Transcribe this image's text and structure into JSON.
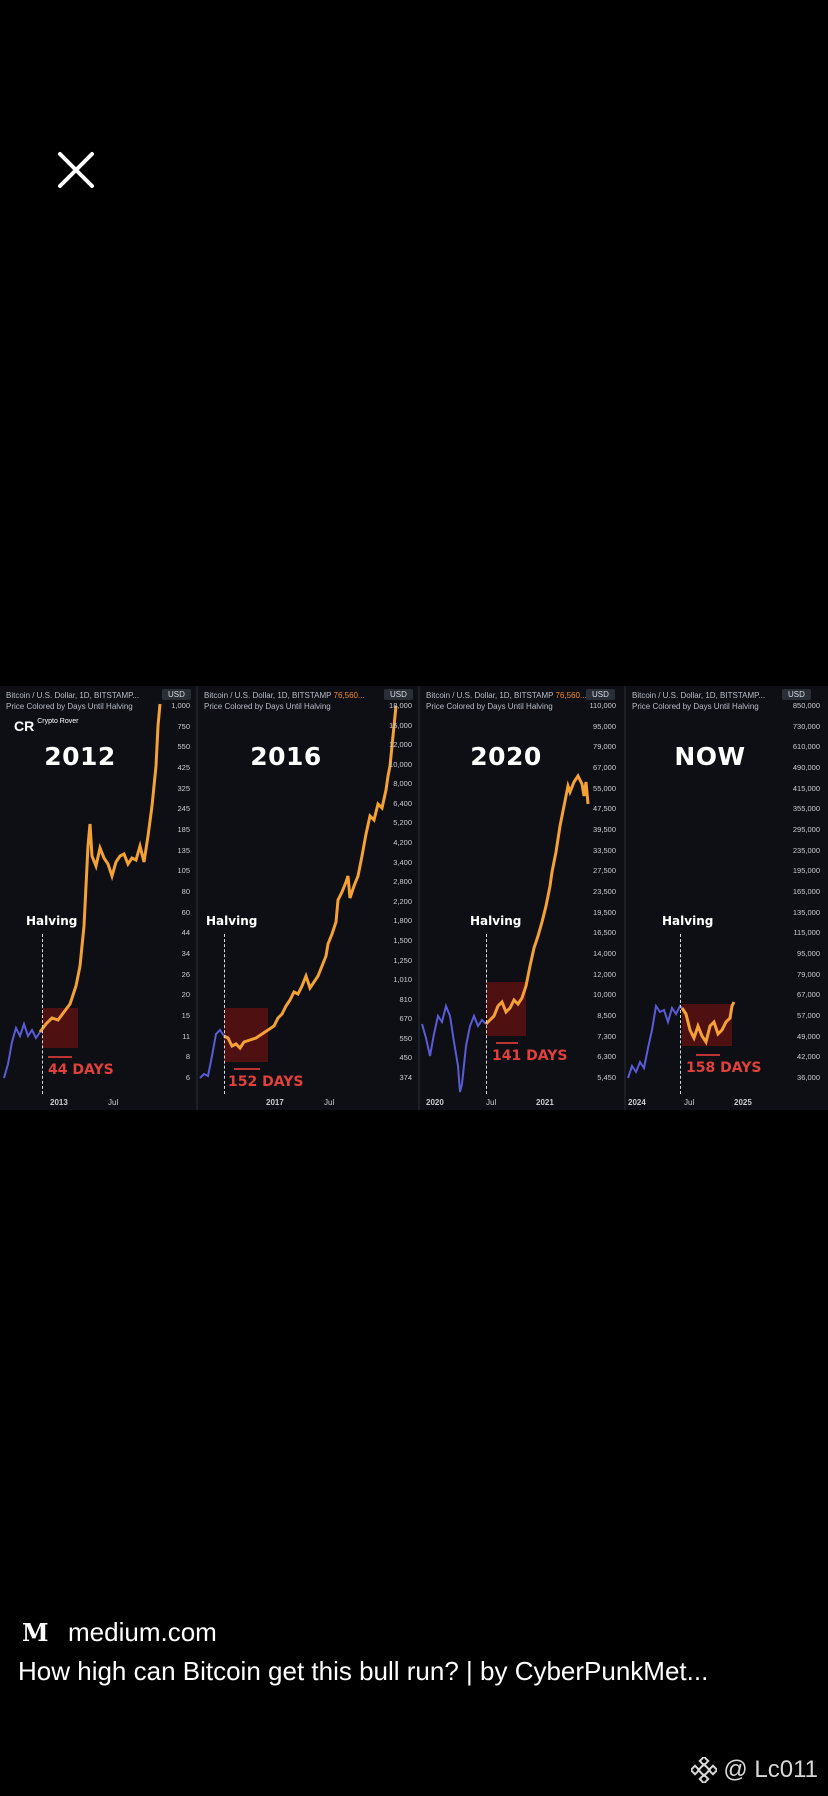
{
  "close": {
    "icon": "close-icon"
  },
  "source": {
    "logo_text": "M",
    "domain": "medium.com"
  },
  "article": {
    "title": "How high can Bitcoin get this bull run? | by CyberPunkMet..."
  },
  "watermark": {
    "text": "@ Lc011",
    "icon": "binance-icon"
  },
  "panels": [
    {
      "header1": "Bitcoin / U.S. Dollar, 1D, BITSTAMP...",
      "header_accent": "",
      "header2": "Price Colored by Days Until Halving",
      "currency": "USD",
      "year": "2012",
      "halving_label": "Halving",
      "days_label": "44 DAYS",
      "logo": "Crypto Rover",
      "ticks": [
        "1,000",
        "750",
        "550",
        "425",
        "325",
        "245",
        "185",
        "135",
        "105",
        "80",
        "60",
        "44",
        "34",
        "26",
        "20",
        "15",
        "11",
        "8",
        "6"
      ],
      "x_labels": [
        "2013",
        "Jul"
      ]
    },
    {
      "header1": "Bitcoin / U.S. Dollar, 1D, BITSTAMP",
      "header_accent": "76,560...",
      "header2": "Price Colored by Days Until Halving",
      "currency": "USD",
      "year": "2016",
      "halving_label": "Halving",
      "days_label": "152 DAYS",
      "ticks": [
        "18,000",
        "15,000",
        "12,000",
        "10,000",
        "8,000",
        "6,400",
        "5,200",
        "4,200",
        "3,400",
        "2,800",
        "2,200",
        "1,800",
        "1,500",
        "1,250",
        "1,010",
        "810",
        "670",
        "550",
        "450",
        "374"
      ],
      "x_labels": [
        "2017",
        "Jul"
      ]
    },
    {
      "header1": "Bitcoin / U.S. Dollar, 1D, BITSTAMP",
      "header_accent": "76,560...",
      "header2": "Price Colored by Days Until Halving",
      "currency": "USD",
      "year": "2020",
      "halving_label": "Halving",
      "days_label": "141 DAYS",
      "ticks": [
        "110,000",
        "95,000",
        "79,000",
        "67,000",
        "55,000",
        "47,500",
        "39,500",
        "33,500",
        "27,500",
        "23,500",
        "19,500",
        "16,500",
        "14,000",
        "12,000",
        "10,000",
        "8,500",
        "7,300",
        "6,300",
        "5,450"
      ],
      "x_labels": [
        "2020",
        "Jul",
        "2021"
      ]
    },
    {
      "header1": "Bitcoin / U.S. Dollar, 1D, BITSTAMP...",
      "header_accent": "",
      "header2": "Price Colored by Days Until Halving",
      "currency": "USD",
      "year": "NOW",
      "halving_label": "Halving",
      "days_label": "158 DAYS",
      "ticks": [
        "850,000",
        "730,000",
        "610,000",
        "490,000",
        "415,000",
        "355,000",
        "295,000",
        "235,000",
        "195,000",
        "165,000",
        "135,000",
        "115,000",
        "95,000",
        "79,000",
        "67,000",
        "57,000",
        "49,000",
        "42,000",
        "36,000"
      ],
      "x_labels": [
        "2024",
        "Jul",
        "2025"
      ]
    }
  ]
}
